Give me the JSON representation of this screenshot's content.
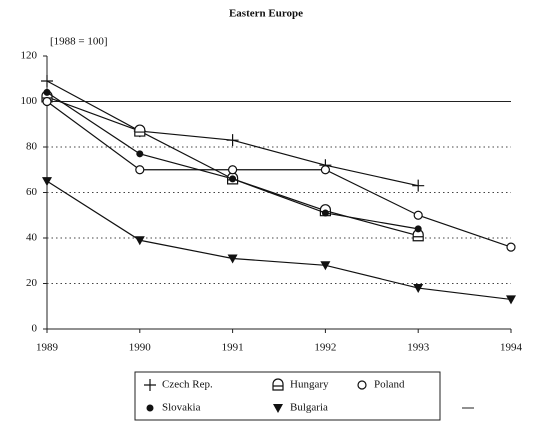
{
  "chart_data": {
    "type": "line",
    "title": "Eastern Europe",
    "subtitle": "[1988 = 100]",
    "categories": [
      "1989",
      "1990",
      "1991",
      "1992",
      "1993",
      "1994"
    ],
    "series": [
      {
        "name": "Czech Rep.",
        "marker": "plus",
        "color": "#111",
        "values": [
          109,
          87,
          83,
          72,
          63,
          null
        ]
      },
      {
        "name": "Hungary",
        "marker": "square",
        "color": "#111",
        "values": [
          102,
          87,
          66,
          52,
          41,
          null
        ]
      },
      {
        "name": "Poland",
        "marker": "circle",
        "color": "#111",
        "values": [
          100,
          70,
          70,
          70,
          50,
          36
        ]
      },
      {
        "name": "Slovakia",
        "marker": "dot",
        "color": "#111",
        "values": [
          104,
          77,
          66,
          51,
          44,
          null
        ]
      },
      {
        "name": "Bulgaria",
        "marker": "triangle",
        "color": "#111",
        "values": [
          65,
          39,
          31,
          28,
          18,
          13
        ]
      }
    ],
    "ylim": [
      0,
      120
    ],
    "yticks": [
      0,
      20,
      40,
      60,
      80,
      100,
      120
    ],
    "grid": true,
    "reference_line": 100
  }
}
